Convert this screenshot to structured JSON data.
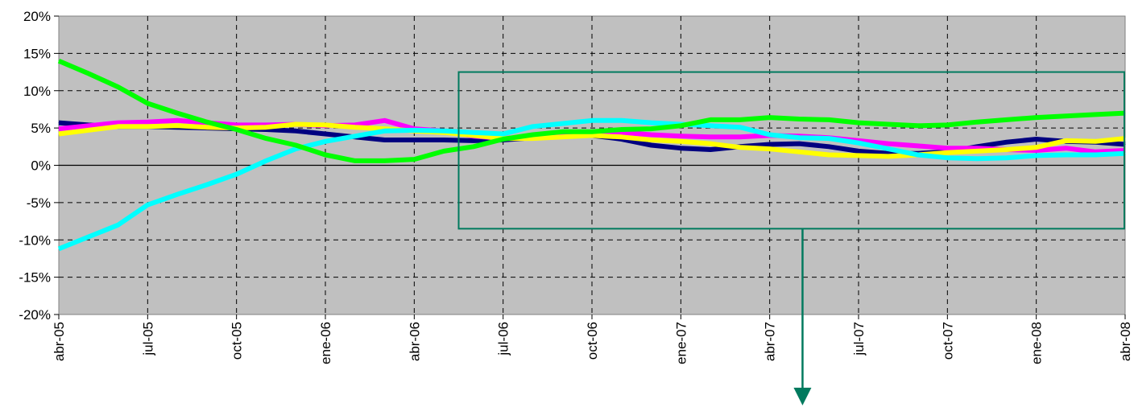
{
  "chart_data": {
    "type": "line",
    "title": "",
    "xlabel": "",
    "ylabel": "",
    "x": [
      "abr-05",
      "may-05",
      "jun-05",
      "jul-05",
      "ago-05",
      "sep-05",
      "oct-05",
      "nov-05",
      "dic-05",
      "ene-06",
      "feb-06",
      "mar-06",
      "abr-06",
      "may-06",
      "jun-06",
      "jul-06",
      "ago-06",
      "sep-06",
      "oct-06",
      "nov-06",
      "dic-06",
      "ene-07",
      "feb-07",
      "mar-07",
      "abr-07",
      "may-07",
      "jun-07",
      "jul-07",
      "ago-07",
      "sep-07",
      "oct-07",
      "nov-07",
      "dic-07",
      "ene-08",
      "feb-08",
      "mar-08",
      "abr-08"
    ],
    "x_tick_labels": [
      "abr-05",
      "jul-05",
      "oct-05",
      "ene-06",
      "abr-06",
      "jul-06",
      "oct-06",
      "ene-07",
      "abr-07",
      "jul-07",
      "oct-07",
      "ene-08",
      "abr-08"
    ],
    "y_tick_labels": [
      "20%",
      "15%",
      "10%",
      "5%",
      "0%",
      "-5%",
      "-10%",
      "-15%",
      "-20%"
    ],
    "y_ticks": [
      20,
      15,
      10,
      5,
      0,
      -5,
      -10,
      -15,
      -20
    ],
    "ylim": [
      -20,
      20
    ],
    "grid": true,
    "series": [
      {
        "color": "#000080",
        "values": [
          5.7,
          5.4,
          5.2,
          5.2,
          5.1,
          5.0,
          4.9,
          4.8,
          4.6,
          4.2,
          3.8,
          3.4,
          3.4,
          3.4,
          3.3,
          3.4,
          3.7,
          4.0,
          4.0,
          3.5,
          2.7,
          2.3,
          2.1,
          2.5,
          2.8,
          2.9,
          2.5,
          1.9,
          1.6,
          1.6,
          1.8,
          2.5,
          3.1,
          3.5,
          3.2,
          3.1,
          2.8
        ]
      },
      {
        "color": "#ff00ff",
        "values": [
          4.9,
          5.3,
          5.7,
          5.8,
          6.0,
          5.7,
          5.4,
          5.4,
          5.5,
          5.3,
          5.4,
          6.0,
          4.9,
          4.6,
          3.9,
          3.6,
          3.8,
          4.1,
          4.5,
          4.4,
          4.1,
          3.9,
          3.8,
          3.8,
          4.0,
          3.9,
          3.7,
          3.3,
          2.9,
          2.6,
          2.3,
          2.3,
          2.1,
          2.0,
          2.3,
          1.8,
          2.0
        ]
      },
      {
        "color": "#ffff00",
        "values": [
          4.2,
          4.7,
          5.2,
          5.2,
          5.3,
          5.1,
          5.0,
          5.1,
          5.5,
          5.4,
          5.1,
          4.9,
          4.6,
          4.4,
          4.0,
          3.6,
          3.6,
          3.8,
          4.0,
          3.8,
          3.4,
          3.2,
          2.9,
          2.4,
          2.2,
          1.8,
          1.4,
          1.3,
          1.2,
          1.4,
          1.7,
          1.9,
          2.1,
          2.4,
          3.3,
          3.2,
          3.6
        ]
      },
      {
        "color": "#00ffff",
        "values": [
          -11.2,
          -9.6,
          -8.0,
          -5.3,
          -3.9,
          -2.6,
          -1.2,
          0.6,
          2.2,
          3.2,
          3.9,
          4.6,
          4.7,
          4.6,
          4.4,
          4.2,
          5.2,
          5.6,
          6.0,
          6.0,
          5.7,
          5.5,
          5.3,
          5.1,
          4.1,
          3.7,
          3.6,
          3.0,
          2.2,
          1.4,
          1.0,
          0.9,
          1.0,
          1.3,
          1.4,
          1.4,
          1.6
        ]
      },
      {
        "color": "#00ff00",
        "values": [
          14.0,
          12.3,
          10.5,
          8.3,
          7.0,
          5.8,
          4.8,
          3.6,
          2.7,
          1.4,
          0.6,
          0.6,
          0.8,
          1.9,
          2.5,
          3.5,
          4.1,
          4.5,
          4.5,
          4.8,
          4.9,
          5.3,
          6.1,
          6.1,
          6.4,
          6.2,
          6.1,
          5.7,
          5.5,
          5.3,
          5.4,
          5.8,
          6.1,
          6.4,
          6.6,
          6.8,
          7.0
        ]
      }
    ],
    "annotation": {
      "type": "highlight-box",
      "color": "#007a5e",
      "x_range": [
        "jun-06",
        "abr-08"
      ],
      "y_range": [
        -8.5,
        12.5
      ],
      "arrow": "down"
    }
  }
}
